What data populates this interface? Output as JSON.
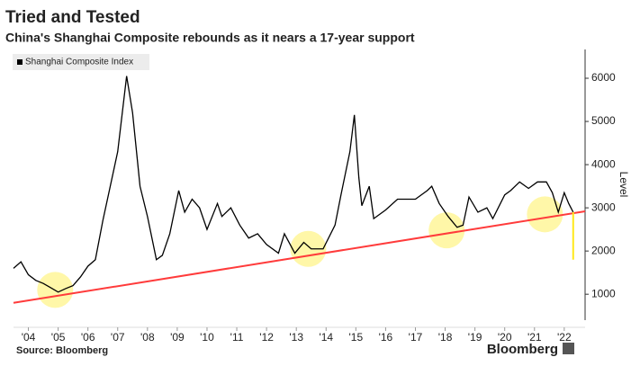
{
  "chart_data": {
    "type": "line",
    "title": "Tried and Tested",
    "subtitle": "China's Shanghai Composite rebounds as it nears a 17-year support",
    "y_label": "Level",
    "source": "Source: Bloomberg",
    "brand": "Bloomberg",
    "x": [
      2004.0,
      2004.25,
      2004.5,
      2004.75,
      2005.0,
      2005.25,
      2005.5,
      2005.75,
      2006.0,
      2006.25,
      2006.5,
      2006.75,
      2007.0,
      2007.25,
      2007.5,
      2007.8,
      2008.0,
      2008.25,
      2008.5,
      2008.8,
      2009.0,
      2009.25,
      2009.55,
      2009.75,
      2010.0,
      2010.25,
      2010.5,
      2010.85,
      2011.0,
      2011.3,
      2011.6,
      2011.9,
      2012.2,
      2012.5,
      2012.9,
      2013.1,
      2013.45,
      2013.75,
      2014.0,
      2014.4,
      2014.8,
      2015.0,
      2015.3,
      2015.45,
      2015.6,
      2015.7,
      2015.95,
      2016.1,
      2016.5,
      2016.9,
      2017.2,
      2017.5,
      2017.9,
      2018.05,
      2018.3,
      2018.6,
      2018.9,
      2019.1,
      2019.3,
      2019.6,
      2019.9,
      2020.1,
      2020.5,
      2020.7,
      2021.0,
      2021.3,
      2021.6,
      2021.9,
      2022.1,
      2022.3,
      2022.5,
      2022.65,
      2022.8
    ],
    "series": [
      {
        "name": "Shanghai Composite Index",
        "color": "#000000",
        "values": [
          1600,
          1750,
          1450,
          1320,
          1250,
          1150,
          1050,
          1130,
          1200,
          1400,
          1650,
          1800,
          2700,
          3500,
          4300,
          6050,
          5200,
          3500,
          2800,
          1800,
          1900,
          2400,
          3400,
          2900,
          3200,
          3000,
          2500,
          3100,
          2800,
          3000,
          2600,
          2300,
          2400,
          2150,
          1950,
          2400,
          1950,
          2200,
          2050,
          2050,
          2600,
          3300,
          4300,
          5150,
          3700,
          3050,
          3500,
          2750,
          2950,
          3200,
          3200,
          3200,
          3400,
          3500,
          3100,
          2800,
          2550,
          2600,
          3250,
          2900,
          3000,
          2750,
          3300,
          3400,
          3600,
          3450,
          3600,
          3600,
          3350,
          2900,
          3350,
          3100,
          2900
        ]
      }
    ],
    "support_line": {
      "x": [
        2004.0,
        2023.2
      ],
      "values": [
        800,
        2920
      ],
      "color": "#ff3b3b"
    },
    "highlights": {
      "x": [
        2005.4,
        2013.9,
        2018.55,
        2021.85
      ],
      "values": [
        1100,
        2050,
        2480,
        2850
      ],
      "color": "#fff27a"
    },
    "marker_line": {
      "x": 2022.8,
      "values": [
        2900,
        1800
      ],
      "color": "#ffe81a"
    },
    "xlim": [
      2004.0,
      2023.2
    ],
    "xticks": [
      {
        "value": 2004.5,
        "label": "'04"
      },
      {
        "value": 2005.5,
        "label": "'05"
      },
      {
        "value": 2006.5,
        "label": "'06"
      },
      {
        "value": 2007.5,
        "label": "'07"
      },
      {
        "value": 2008.5,
        "label": "'08"
      },
      {
        "value": 2009.5,
        "label": "'09"
      },
      {
        "value": 2010.5,
        "label": "'10"
      },
      {
        "value": 2011.5,
        "label": "'11"
      },
      {
        "value": 2012.5,
        "label": "'12"
      },
      {
        "value": 2013.5,
        "label": "'13"
      },
      {
        "value": 2014.5,
        "label": "'14"
      },
      {
        "value": 2015.5,
        "label": "'15"
      },
      {
        "value": 2016.5,
        "label": "'16"
      },
      {
        "value": 2017.5,
        "label": "'17"
      },
      {
        "value": 2018.5,
        "label": "'18"
      },
      {
        "value": 2019.5,
        "label": "'19"
      },
      {
        "value": 2020.5,
        "label": "'20"
      },
      {
        "value": 2021.5,
        "label": "'21"
      },
      {
        "value": 2022.5,
        "label": "'22"
      }
    ],
    "ylim": [
      400,
      6500
    ],
    "yticks": [
      1000,
      2000,
      3000,
      4000,
      5000,
      6000
    ],
    "legend": "top-left"
  }
}
